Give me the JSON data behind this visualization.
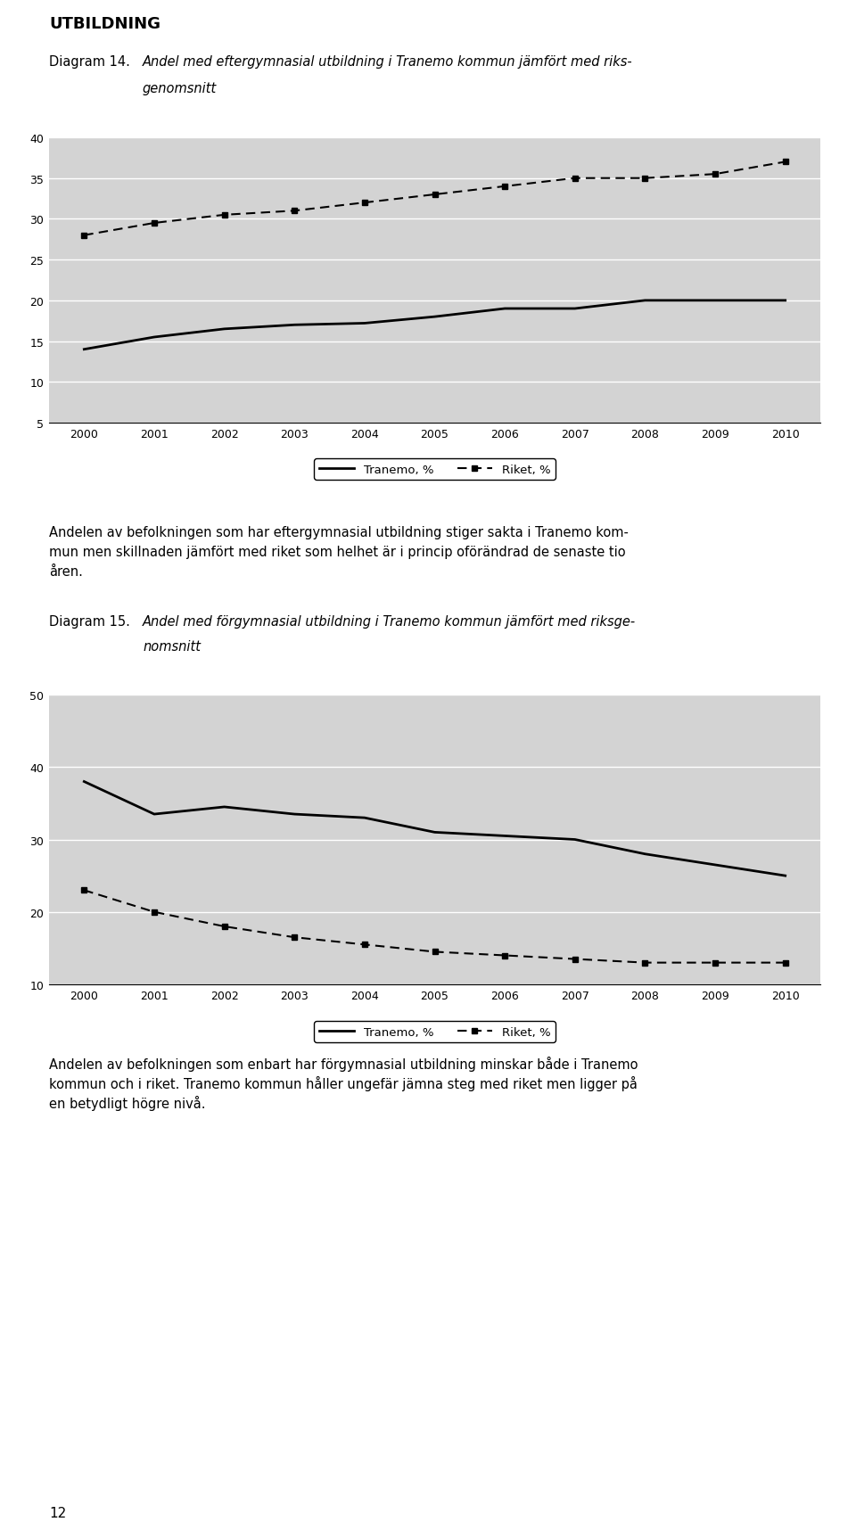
{
  "page_title": "UTBILDNING",
  "diagram14": {
    "label": "Diagram 14.",
    "title_line1": "Andel med eftergymnasial utbildning i Tranemo kommun jämfört med riks-",
    "title_line2": "genomsnitt",
    "years": [
      2000,
      2001,
      2002,
      2003,
      2004,
      2005,
      2006,
      2007,
      2008,
      2009,
      2010
    ],
    "tranemo": [
      14.0,
      15.5,
      16.5,
      17.0,
      17.2,
      18.0,
      19.0,
      19.0,
      20.0,
      20.0,
      20.0
    ],
    "riket": [
      28.0,
      29.5,
      30.5,
      31.0,
      32.0,
      33.0,
      34.0,
      35.0,
      35.0,
      35.5,
      37.0
    ],
    "ylim": [
      5,
      40
    ],
    "yticks": [
      5,
      10,
      15,
      20,
      25,
      30,
      35,
      40
    ],
    "legend_tranemo": "Tranemo, %",
    "legend_riket": "Riket, %"
  },
  "paragraph1_lines": [
    "Andelen av befolkningen som har eftergymnasial utbildning stiger sakta i Tranemo kom-",
    "mun men skillnaden jämfört med riket som helhet är i princip oförändrad de senaste tio",
    "åren."
  ],
  "diagram15": {
    "label": "Diagram 15.",
    "title_line1": "Andel med förgymnasial utbildning i Tranemo kommun jämfört med riksge-",
    "title_line2": "nomsnitt",
    "years": [
      2000,
      2001,
      2002,
      2003,
      2004,
      2005,
      2006,
      2007,
      2008,
      2009,
      2010
    ],
    "tranemo": [
      38.0,
      33.5,
      34.5,
      33.5,
      33.0,
      31.0,
      30.5,
      30.0,
      28.0,
      26.5,
      25.0
    ],
    "riket": [
      23.0,
      20.0,
      18.0,
      16.5,
      15.5,
      14.5,
      14.0,
      13.5,
      13.0,
      13.0,
      13.0
    ],
    "ylim": [
      10,
      50
    ],
    "yticks": [
      10,
      20,
      30,
      40,
      50
    ],
    "legend_tranemo": "Tranemo, %",
    "legend_riket": "Riket, %"
  },
  "paragraph2_lines": [
    "Andelen av befolkningen som enbart har förgymnasial utbildning minskar både i Tranemo",
    "kommun och i riket. Tranemo kommun håller ungefär jämna steg med riket men ligger på",
    "en betydligt högre nivå."
  ],
  "page_number": "12",
  "bg_color": "#d3d3d3",
  "legend_box_color": "#ffffff",
  "line_color": "#000000"
}
